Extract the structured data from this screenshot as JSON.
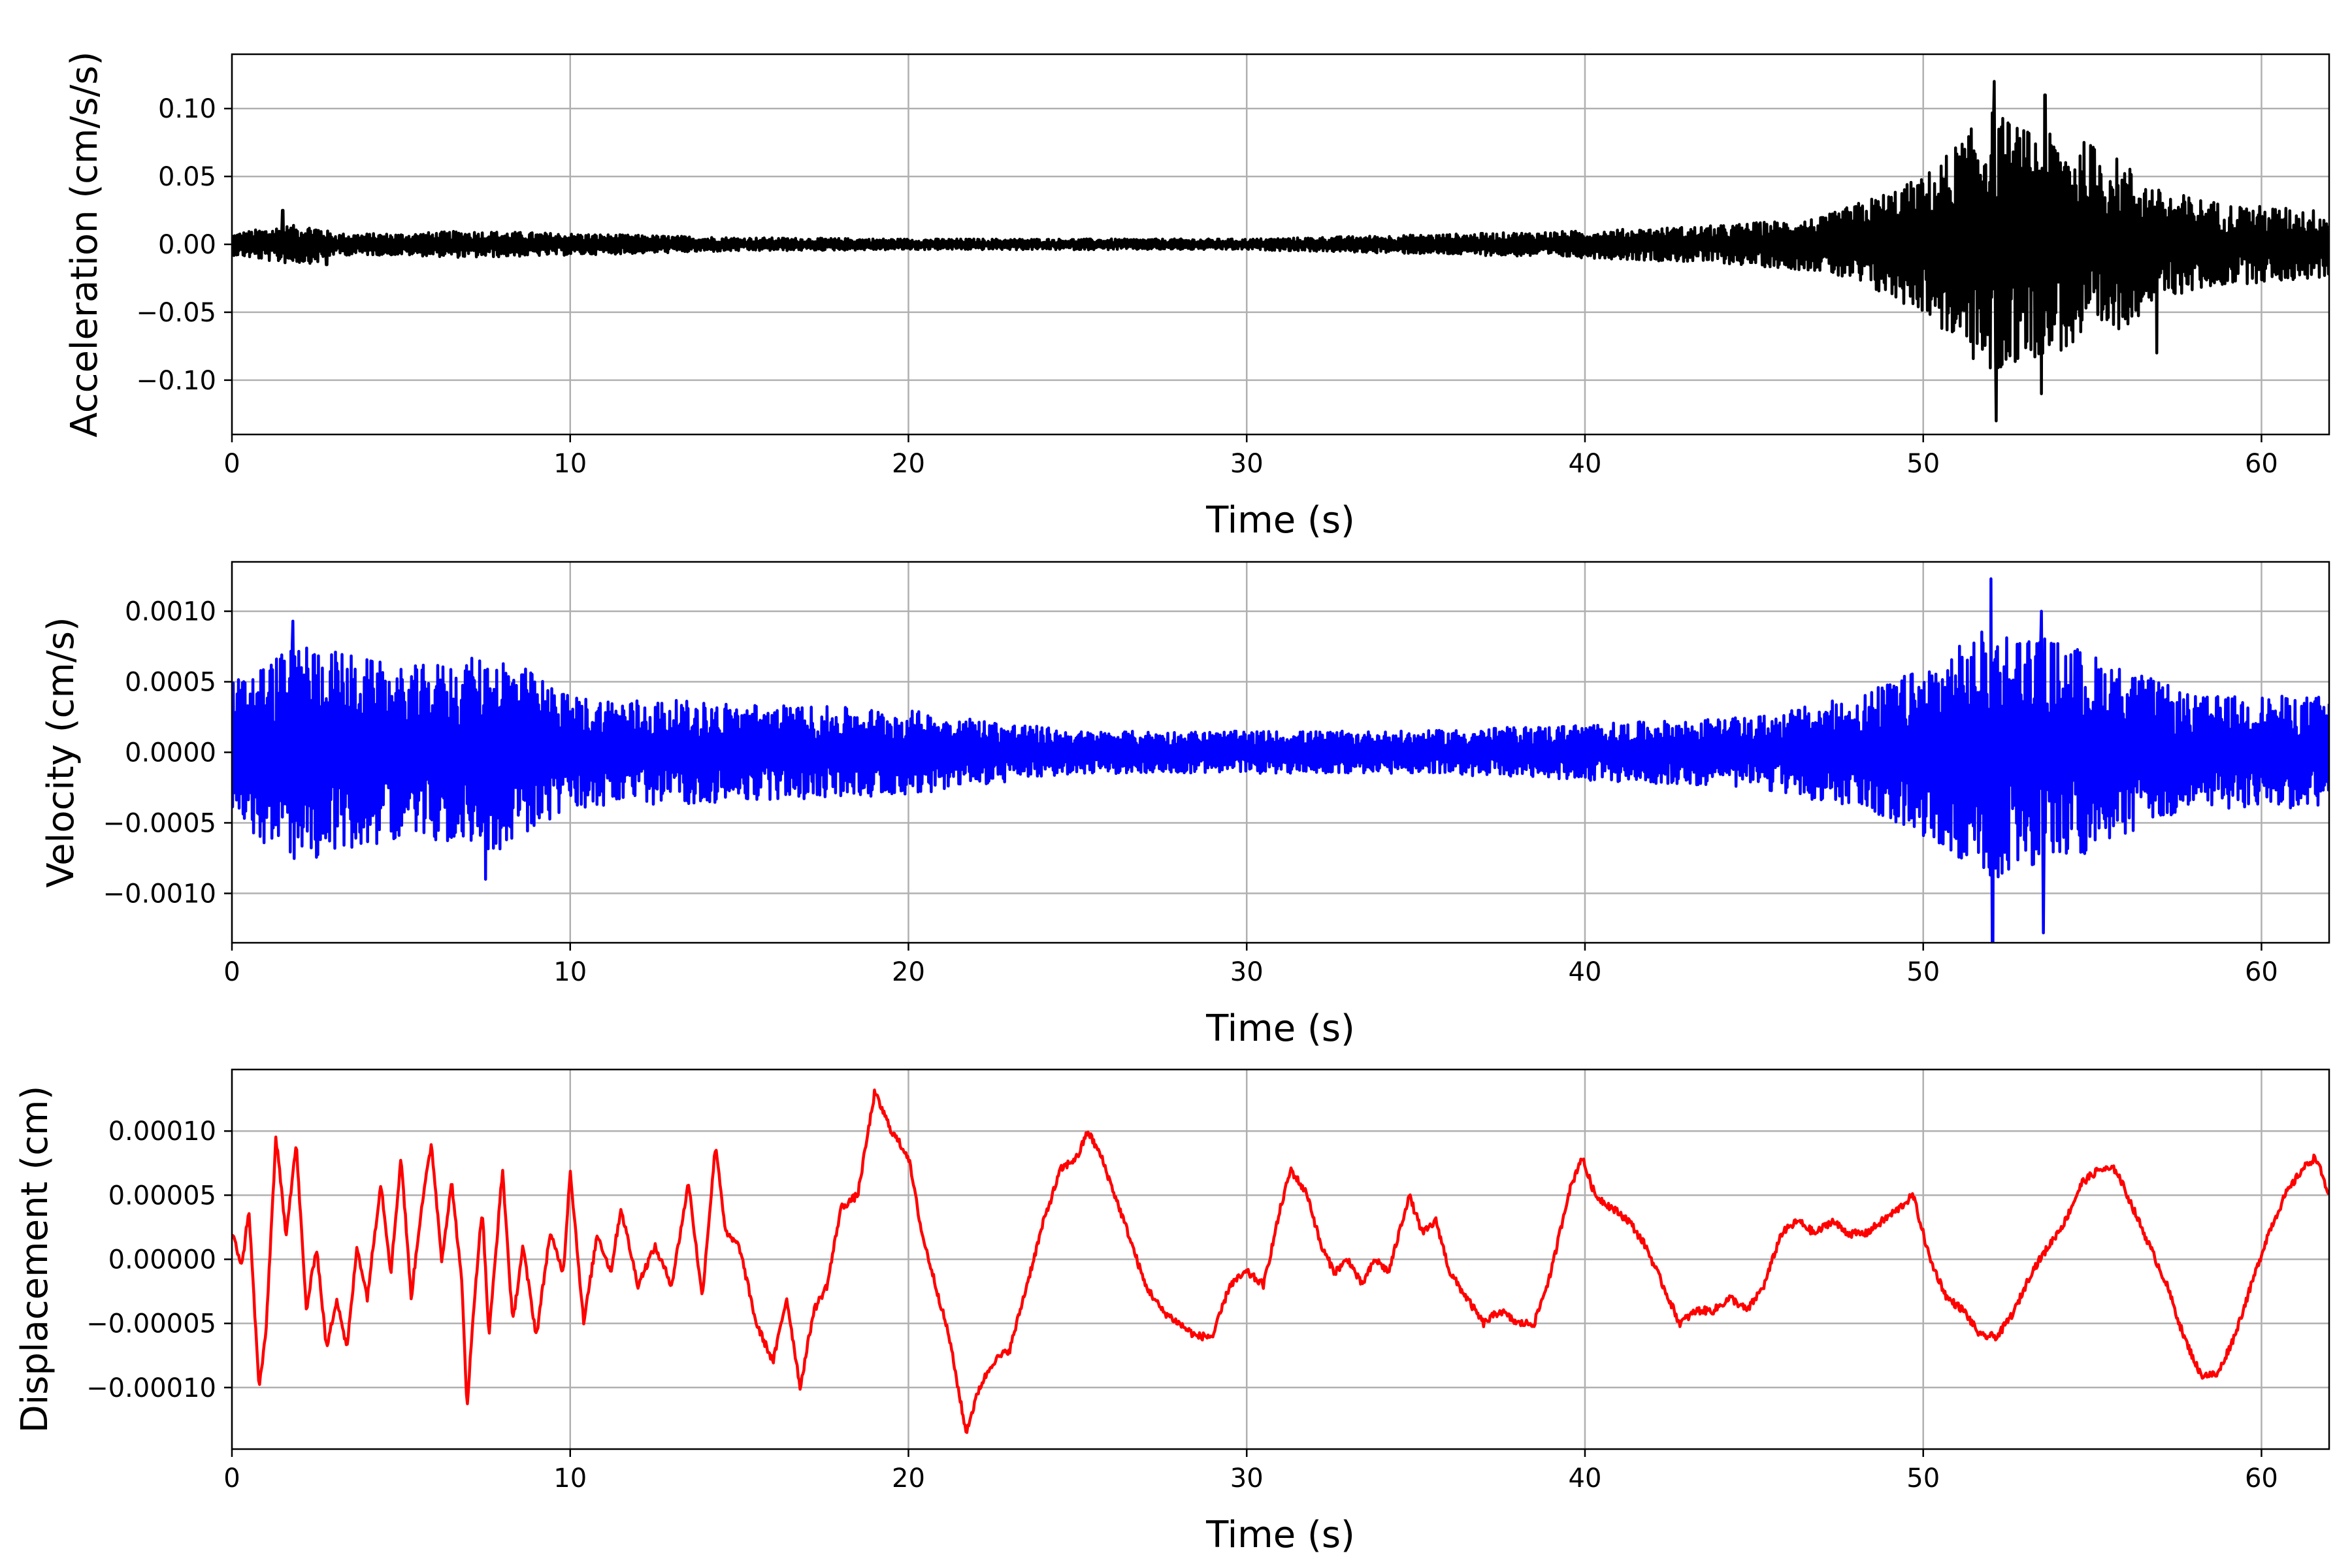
{
  "chart_data": [
    {
      "type": "line",
      "id": "acceleration",
      "title": "",
      "xlabel": "Time (s)",
      "ylabel": "Acceleration (cm/s/s)",
      "xlim": [
        0,
        62
      ],
      "ylim": [
        -0.14,
        0.14
      ],
      "xticks": [
        0,
        10,
        20,
        30,
        40,
        50,
        60
      ],
      "xtick_labels": [
        "0",
        "10",
        "20",
        "30",
        "40",
        "50",
        "60"
      ],
      "yticks": [
        -0.1,
        -0.05,
        0.0,
        0.05,
        0.1
      ],
      "ytick_labels": [
        "−0.10",
        "−0.05",
        "0.00",
        "0.05",
        "0.10"
      ],
      "grid": true,
      "legend": "none",
      "color": "#000000",
      "envelope": [
        [
          0,
          0.008
        ],
        [
          1.5,
          0.014
        ],
        [
          2.5,
          0.014
        ],
        [
          3,
          0.008
        ],
        [
          5,
          0.008
        ],
        [
          7,
          0.01
        ],
        [
          10,
          0.008
        ],
        [
          15,
          0.005
        ],
        [
          20,
          0.004
        ],
        [
          25,
          0.004
        ],
        [
          30,
          0.004
        ],
        [
          35,
          0.007
        ],
        [
          40,
          0.01
        ],
        [
          44,
          0.014
        ],
        [
          47,
          0.02
        ],
        [
          48.5,
          0.035
        ],
        [
          50,
          0.05
        ],
        [
          51,
          0.075
        ],
        [
          52,
          0.1
        ],
        [
          53,
          0.085
        ],
        [
          54,
          0.08
        ],
        [
          55,
          0.075
        ],
        [
          56,
          0.06
        ],
        [
          57,
          0.04
        ],
        [
          59,
          0.03
        ],
        [
          62,
          0.025
        ]
      ],
      "peaks": [
        [
          52.1,
          0.12
        ],
        [
          52.15,
          -0.13
        ],
        [
          53.6,
          0.11
        ],
        [
          53.5,
          -0.11
        ],
        [
          55.0,
          0.06
        ],
        [
          56.9,
          -0.08
        ],
        [
          1.5,
          0.025
        ],
        [
          2.8,
          -0.015
        ]
      ]
    },
    {
      "type": "line",
      "id": "velocity",
      "title": "",
      "xlabel": "Time (s)",
      "ylabel": "Velocity (cm/s)",
      "xlim": [
        0,
        62
      ],
      "ylim": [
        -0.00135,
        0.00135
      ],
      "xticks": [
        0,
        10,
        20,
        30,
        40,
        50,
        60
      ],
      "xtick_labels": [
        "0",
        "10",
        "20",
        "30",
        "40",
        "50",
        "60"
      ],
      "yticks": [
        -0.001,
        -0.0005,
        0.0,
        0.0005,
        0.001
      ],
      "ytick_labels": [
        "−0.0010",
        "−0.0005",
        "0.0000",
        "0.0005",
        "0.0010"
      ],
      "grid": true,
      "legend": "none",
      "color": "#0000ff",
      "envelope": [
        [
          0,
          0.0005
        ],
        [
          2,
          0.0008
        ],
        [
          5,
          0.0006
        ],
        [
          8,
          0.0007
        ],
        [
          10,
          0.0004
        ],
        [
          15,
          0.00035
        ],
        [
          20,
          0.0003
        ],
        [
          25,
          0.00015
        ],
        [
          30,
          0.00015
        ],
        [
          35,
          0.00015
        ],
        [
          40,
          0.0002
        ],
        [
          45,
          0.00025
        ],
        [
          48,
          0.0004
        ],
        [
          50,
          0.0006
        ],
        [
          52,
          0.0009
        ],
        [
          54,
          0.0008
        ],
        [
          56,
          0.0006
        ],
        [
          58,
          0.0004
        ],
        [
          62,
          0.0004
        ]
      ],
      "peaks": [
        [
          52.0,
          0.00123
        ],
        [
          52.05,
          -0.00135
        ],
        [
          53.5,
          0.001
        ],
        [
          53.55,
          -0.00128
        ],
        [
          1.8,
          0.00093
        ],
        [
          7.5,
          -0.0009
        ]
      ]
    },
    {
      "type": "line",
      "id": "displacement",
      "title": "",
      "xlabel": "Time (s)",
      "ylabel": "Displacement (cm)",
      "xlim": [
        0,
        62
      ],
      "ylim": [
        -0.000148,
        0.000148
      ],
      "xticks": [
        0,
        10,
        20,
        30,
        40,
        50,
        60
      ],
      "xtick_labels": [
        "0",
        "10",
        "20",
        "30",
        "40",
        "50",
        "60"
      ],
      "yticks": [
        -0.0001,
        -5e-05,
        0.0,
        5e-05,
        0.0001
      ],
      "ytick_labels": [
        "−0.00010",
        "−0.00005",
        "0.00000",
        "0.00005",
        "0.00010"
      ],
      "grid": true,
      "legend": "none",
      "color": "#ff0000",
      "points": [
        [
          0,
          2e-05
        ],
        [
          0.3,
          -5e-06
        ],
        [
          0.5,
          4e-05
        ],
        [
          0.8,
          -0.0001
        ],
        [
          1.0,
          -6e-05
        ],
        [
          1.3,
          9.5e-05
        ],
        [
          1.6,
          2e-05
        ],
        [
          1.9,
          9e-05
        ],
        [
          2.2,
          -4e-05
        ],
        [
          2.5,
          1e-05
        ],
        [
          2.8,
          -7e-05
        ],
        [
          3.1,
          -3e-05
        ],
        [
          3.4,
          -7e-05
        ],
        [
          3.7,
          1e-05
        ],
        [
          4.0,
          -3e-05
        ],
        [
          4.4,
          6e-05
        ],
        [
          4.7,
          -1e-05
        ],
        [
          5.0,
          8e-05
        ],
        [
          5.3,
          -3e-05
        ],
        [
          5.6,
          4e-05
        ],
        [
          5.9,
          9e-05
        ],
        [
          6.2,
          0.0
        ],
        [
          6.5,
          6e-05
        ],
        [
          6.8,
          -2e-05
        ],
        [
          6.95,
          -0.000115
        ],
        [
          7.2,
          -2e-05
        ],
        [
          7.4,
          4e-05
        ],
        [
          7.6,
          -6e-05
        ],
        [
          8.0,
          7e-05
        ],
        [
          8.3,
          -5e-05
        ],
        [
          8.6,
          1e-05
        ],
        [
          9.0,
          -6e-05
        ],
        [
          9.4,
          2e-05
        ],
        [
          9.8,
          -1e-05
        ],
        [
          10.0,
          7e-05
        ],
        [
          10.4,
          -5e-05
        ],
        [
          10.8,
          2e-05
        ],
        [
          11.2,
          -1e-05
        ],
        [
          11.5,
          4e-05
        ],
        [
          12.0,
          -2e-05
        ],
        [
          12.5,
          1e-05
        ],
        [
          13.0,
          -2e-05
        ],
        [
          13.5,
          6e-05
        ],
        [
          13.9,
          -3e-05
        ],
        [
          14.3,
          9e-05
        ],
        [
          14.6,
          2e-05
        ],
        [
          15.0,
          1e-05
        ],
        [
          15.5,
          -5e-05
        ],
        [
          16.0,
          -8e-05
        ],
        [
          16.4,
          -3e-05
        ],
        [
          16.8,
          -0.0001
        ],
        [
          17.2,
          -4e-05
        ],
        [
          17.6,
          -2e-05
        ],
        [
          18.0,
          4e-05
        ],
        [
          18.5,
          5e-05
        ],
        [
          19.0,
          0.00013
        ],
        [
          19.5,
          0.0001
        ],
        [
          20.0,
          8e-05
        ],
        [
          20.4,
          2e-05
        ],
        [
          20.8,
          -2e-05
        ],
        [
          21.2,
          -6e-05
        ],
        [
          21.7,
          -0.000135
        ],
        [
          22.1,
          -0.0001
        ],
        [
          22.5,
          -8e-05
        ],
        [
          23.0,
          -7e-05
        ],
        [
          23.5,
          -2e-05
        ],
        [
          24.0,
          3e-05
        ],
        [
          24.5,
          7e-05
        ],
        [
          25.0,
          8e-05
        ],
        [
          25.3,
          0.0001
        ],
        [
          25.7,
          8e-05
        ],
        [
          26.1,
          5e-05
        ],
        [
          26.5,
          2e-05
        ],
        [
          27.0,
          -2e-05
        ],
        [
          27.5,
          -4e-05
        ],
        [
          28.0,
          -5e-05
        ],
        [
          28.5,
          -6e-05
        ],
        [
          29.0,
          -6e-05
        ],
        [
          29.5,
          -2e-05
        ],
        [
          30.0,
          -1e-05
        ],
        [
          30.5,
          -2e-05
        ],
        [
          31.0,
          4e-05
        ],
        [
          31.3,
          7e-05
        ],
        [
          31.8,
          5e-05
        ],
        [
          32.2,
          1e-05
        ],
        [
          32.6,
          -1e-05
        ],
        [
          33.0,
          0.0
        ],
        [
          33.4,
          -2e-05
        ],
        [
          33.8,
          0.0
        ],
        [
          34.2,
          -1e-05
        ],
        [
          34.8,
          5e-05
        ],
        [
          35.2,
          2e-05
        ],
        [
          35.6,
          3e-05
        ],
        [
          36.0,
          -1e-05
        ],
        [
          36.5,
          -3e-05
        ],
        [
          37.0,
          -5e-05
        ],
        [
          37.5,
          -4e-05
        ],
        [
          38.0,
          -5e-05
        ],
        [
          38.5,
          -5e-05
        ],
        [
          39.0,
          -1e-05
        ],
        [
          39.5,
          5e-05
        ],
        [
          39.9,
          8e-05
        ],
        [
          40.3,
          5e-05
        ],
        [
          40.8,
          4e-05
        ],
        [
          41.3,
          3e-05
        ],
        [
          41.8,
          1e-05
        ],
        [
          42.3,
          -2e-05
        ],
        [
          42.8,
          -5e-05
        ],
        [
          43.3,
          -4e-05
        ],
        [
          43.8,
          -4e-05
        ],
        [
          44.3,
          -3e-05
        ],
        [
          44.8,
          -4e-05
        ],
        [
          45.3,
          -2e-05
        ],
        [
          45.8,
          2e-05
        ],
        [
          46.3,
          3e-05
        ],
        [
          46.8,
          2e-05
        ],
        [
          47.3,
          3e-05
        ],
        [
          47.8,
          2e-05
        ],
        [
          48.3,
          2e-05
        ],
        [
          48.8,
          3e-05
        ],
        [
          49.3,
          4e-05
        ],
        [
          49.7,
          5e-05
        ],
        [
          50.2,
          0.0
        ],
        [
          50.7,
          -3e-05
        ],
        [
          51.2,
          -4e-05
        ],
        [
          51.7,
          -6e-05
        ],
        [
          52.2,
          -6e-05
        ],
        [
          52.7,
          -4e-05
        ],
        [
          53.2,
          -1e-05
        ],
        [
          53.7,
          1e-05
        ],
        [
          54.2,
          3e-05
        ],
        [
          54.7,
          6e-05
        ],
        [
          55.2,
          7e-05
        ],
        [
          55.7,
          7e-05
        ],
        [
          56.2,
          4e-05
        ],
        [
          56.7,
          1e-05
        ],
        [
          57.2,
          -2e-05
        ],
        [
          57.7,
          -6e-05
        ],
        [
          58.2,
          -9e-05
        ],
        [
          58.7,
          -9e-05
        ],
        [
          59.2,
          -6e-05
        ],
        [
          59.7,
          -2e-05
        ],
        [
          60.2,
          2e-05
        ],
        [
          60.7,
          5e-05
        ],
        [
          61.2,
          7e-05
        ],
        [
          61.6,
          8e-05
        ],
        [
          62.0,
          5e-05
        ]
      ]
    }
  ]
}
